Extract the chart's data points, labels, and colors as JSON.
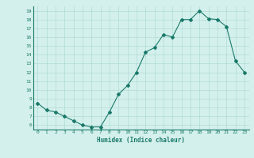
{
  "x": [
    0,
    1,
    2,
    3,
    4,
    5,
    6,
    7,
    8,
    9,
    10,
    11,
    12,
    13,
    14,
    15,
    16,
    17,
    18,
    19,
    20,
    21,
    22,
    23
  ],
  "y": [
    8.5,
    7.7,
    7.5,
    7.0,
    6.5,
    6.0,
    5.8,
    5.8,
    7.5,
    9.5,
    10.5,
    12.0,
    14.3,
    14.8,
    16.3,
    16.0,
    18.0,
    18.0,
    19.0,
    18.1,
    18.0,
    17.2,
    13.3,
    12.0
  ],
  "title": "",
  "xlabel": "Humidex (Indice chaleur)",
  "ylabel": "",
  "xlim": [
    -0.5,
    23.5
  ],
  "ylim": [
    5.5,
    19.5
  ],
  "yticks": [
    6,
    7,
    8,
    9,
    10,
    11,
    12,
    13,
    14,
    15,
    16,
    17,
    18,
    19
  ],
  "xticks": [
    0,
    1,
    2,
    3,
    4,
    5,
    6,
    7,
    8,
    9,
    10,
    11,
    12,
    13,
    14,
    15,
    16,
    17,
    18,
    19,
    20,
    21,
    22,
    23
  ],
  "line_color": "#1a7a6a",
  "marker_color": "#1a7a6a",
  "bg_color": "#d4f0ec",
  "grid_color": "#b0dbd6",
  "tick_label_color": "#1a7a6a",
  "xlabel_color": "#1a7a6a"
}
